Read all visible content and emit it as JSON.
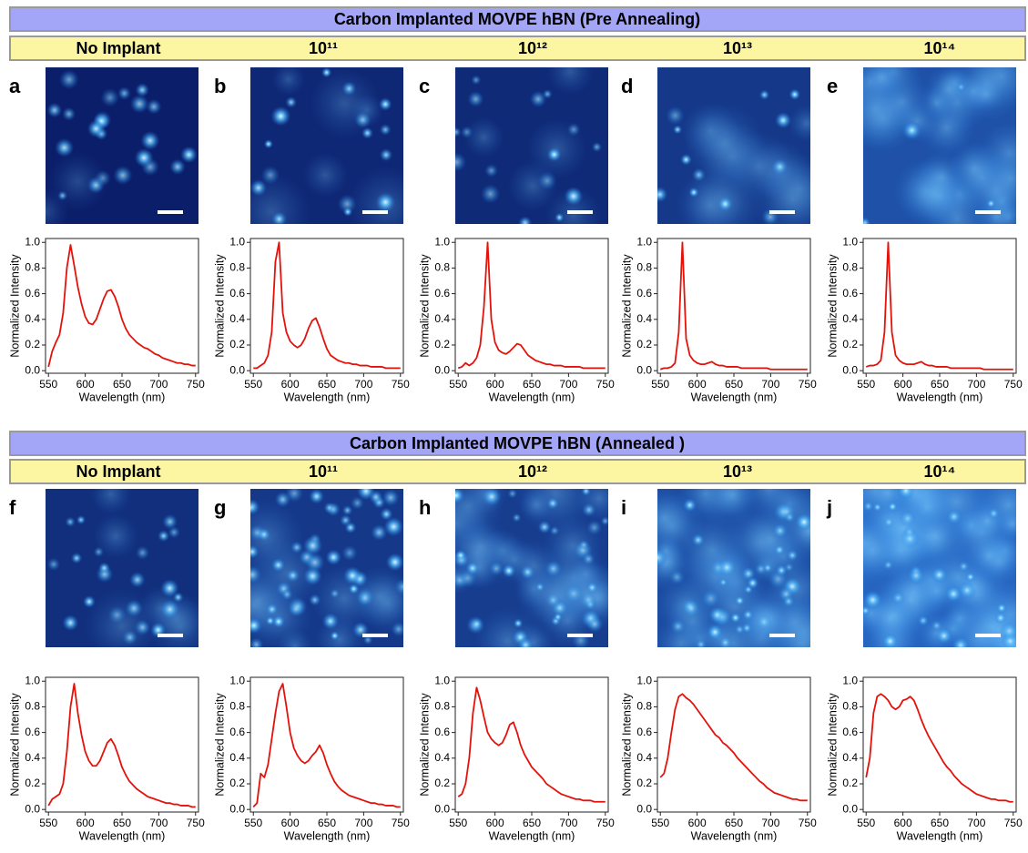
{
  "sections": [
    {
      "title": "Carbon Implanted MOVPE hBN (Pre Annealing)",
      "columns": [
        "No Implant",
        "10¹¹",
        "10¹²",
        "10¹³",
        "10¹⁴"
      ],
      "panels": [
        "a",
        "b",
        "c",
        "d",
        "e"
      ]
    },
    {
      "title": "Carbon Implanted MOVPE hBN (Annealed )",
      "columns": [
        "No Implant",
        "10¹¹",
        "10¹²",
        "10¹³",
        "10¹⁴"
      ],
      "panels": [
        "f",
        "g",
        "h",
        "i",
        "j"
      ]
    }
  ],
  "chart_data": [
    {
      "type": "line",
      "xlabel": "Wavelength (nm)",
      "ylabel": "Normalized Intensity",
      "color": "#e3120b",
      "xlim": [
        546,
        754
      ],
      "xticks": [
        550,
        600,
        650,
        700,
        750
      ],
      "ylim": [
        -0.02,
        1.03
      ],
      "yticks": [
        {
          "value": 0,
          "label": "0.0"
        },
        0.2,
        0.4,
        0.6,
        0.8,
        {
          "value": 1,
          "label": "1.0"
        }
      ],
      "x": [
        550,
        555,
        560,
        565,
        570,
        575,
        580,
        585,
        590,
        595,
        600,
        605,
        610,
        615,
        620,
        625,
        630,
        635,
        640,
        645,
        650,
        655,
        660,
        665,
        670,
        675,
        680,
        685,
        690,
        695,
        700,
        705,
        710,
        715,
        720,
        725,
        730,
        735,
        740,
        745,
        750
      ],
      "values": [
        0.03,
        0.15,
        0.22,
        0.28,
        0.45,
        0.8,
        0.98,
        0.82,
        0.65,
        0.52,
        0.42,
        0.37,
        0.36,
        0.4,
        0.48,
        0.56,
        0.62,
        0.63,
        0.58,
        0.5,
        0.4,
        0.33,
        0.28,
        0.25,
        0.22,
        0.2,
        0.18,
        0.17,
        0.15,
        0.13,
        0.12,
        0.1,
        0.09,
        0.08,
        0.07,
        0.06,
        0.06,
        0.05,
        0.05,
        0.04,
        0.04
      ]
    },
    {
      "type": "line",
      "xlabel": "Wavelength (nm)",
      "ylabel": "Normalized Intensity",
      "color": "#e3120b",
      "xlim": [
        546,
        754
      ],
      "xticks": [
        550,
        600,
        650,
        700,
        750
      ],
      "ylim": [
        -0.02,
        1.03
      ],
      "yticks": [
        {
          "value": 0,
          "label": "0.0"
        },
        0.2,
        0.4,
        0.6,
        0.8,
        {
          "value": 1,
          "label": "1.0"
        }
      ],
      "x": [
        550,
        555,
        560,
        565,
        570,
        575,
        580,
        585,
        590,
        595,
        600,
        605,
        610,
        615,
        620,
        625,
        630,
        635,
        640,
        645,
        650,
        655,
        660,
        665,
        670,
        675,
        680,
        685,
        690,
        695,
        700,
        705,
        710,
        715,
        720,
        725,
        730,
        735,
        740,
        745,
        750
      ],
      "values": [
        0.02,
        0.02,
        0.04,
        0.06,
        0.12,
        0.3,
        0.85,
        1.0,
        0.45,
        0.3,
        0.23,
        0.2,
        0.18,
        0.2,
        0.25,
        0.33,
        0.39,
        0.41,
        0.34,
        0.25,
        0.17,
        0.12,
        0.1,
        0.08,
        0.07,
        0.06,
        0.06,
        0.05,
        0.05,
        0.04,
        0.04,
        0.04,
        0.03,
        0.03,
        0.03,
        0.03,
        0.02,
        0.02,
        0.02,
        0.02,
        0.02
      ]
    },
    {
      "type": "line",
      "xlabel": "Wavelength (nm)",
      "ylabel": "Normalized Intensity",
      "color": "#e3120b",
      "xlim": [
        546,
        754
      ],
      "xticks": [
        550,
        600,
        650,
        700,
        750
      ],
      "ylim": [
        -0.02,
        1.03
      ],
      "yticks": [
        {
          "value": 0,
          "label": "0.0"
        },
        0.2,
        0.4,
        0.6,
        0.8,
        {
          "value": 1,
          "label": "1.0"
        }
      ],
      "x": [
        550,
        555,
        560,
        565,
        570,
        575,
        580,
        585,
        590,
        595,
        600,
        605,
        610,
        615,
        620,
        625,
        630,
        635,
        640,
        645,
        650,
        655,
        660,
        665,
        670,
        675,
        680,
        685,
        690,
        695,
        700,
        705,
        710,
        715,
        720,
        725,
        730,
        735,
        740,
        745,
        750
      ],
      "values": [
        0.02,
        0.03,
        0.06,
        0.04,
        0.06,
        0.1,
        0.2,
        0.5,
        1.0,
        0.4,
        0.22,
        0.16,
        0.14,
        0.13,
        0.15,
        0.18,
        0.21,
        0.2,
        0.16,
        0.12,
        0.1,
        0.08,
        0.07,
        0.06,
        0.05,
        0.05,
        0.04,
        0.04,
        0.04,
        0.03,
        0.03,
        0.03,
        0.03,
        0.03,
        0.02,
        0.02,
        0.02,
        0.02,
        0.02,
        0.02,
        0.02
      ]
    },
    {
      "type": "line",
      "xlabel": "Wavelength (nm)",
      "ylabel": "Normalized Intensity",
      "color": "#e3120b",
      "xlim": [
        546,
        754
      ],
      "xticks": [
        550,
        600,
        650,
        700,
        750
      ],
      "ylim": [
        -0.02,
        1.03
      ],
      "yticks": [
        {
          "value": 0,
          "label": "0.0"
        },
        0.2,
        0.4,
        0.6,
        0.8,
        {
          "value": 1,
          "label": "1.0"
        }
      ],
      "x": [
        550,
        555,
        560,
        565,
        570,
        575,
        580,
        585,
        590,
        595,
        600,
        605,
        610,
        615,
        620,
        625,
        630,
        635,
        640,
        645,
        650,
        655,
        660,
        665,
        670,
        675,
        680,
        685,
        690,
        695,
        700,
        705,
        710,
        715,
        720,
        725,
        730,
        735,
        740,
        745,
        750
      ],
      "values": [
        0.01,
        0.02,
        0.02,
        0.03,
        0.06,
        0.3,
        1.0,
        0.25,
        0.12,
        0.08,
        0.06,
        0.05,
        0.05,
        0.06,
        0.07,
        0.05,
        0.04,
        0.04,
        0.03,
        0.03,
        0.03,
        0.03,
        0.02,
        0.02,
        0.02,
        0.02,
        0.02,
        0.02,
        0.02,
        0.02,
        0.01,
        0.01,
        0.01,
        0.01,
        0.01,
        0.01,
        0.01,
        0.01,
        0.01,
        0.01,
        0.01
      ]
    },
    {
      "type": "line",
      "xlabel": "Wavelength (nm)",
      "ylabel": "Normalized Intensity",
      "color": "#e3120b",
      "xlim": [
        546,
        754
      ],
      "xticks": [
        550,
        600,
        650,
        700,
        750
      ],
      "ylim": [
        -0.02,
        1.03
      ],
      "yticks": [
        {
          "value": 0,
          "label": "0.0"
        },
        0.2,
        0.4,
        0.6,
        0.8,
        {
          "value": 1,
          "label": "1.0"
        }
      ],
      "x": [
        550,
        555,
        560,
        565,
        570,
        575,
        580,
        585,
        590,
        595,
        600,
        605,
        610,
        615,
        620,
        625,
        630,
        635,
        640,
        645,
        650,
        655,
        660,
        665,
        670,
        675,
        680,
        685,
        690,
        695,
        700,
        705,
        710,
        715,
        720,
        725,
        730,
        735,
        740,
        745,
        750
      ],
      "values": [
        0.03,
        0.04,
        0.04,
        0.05,
        0.08,
        0.3,
        1.0,
        0.3,
        0.12,
        0.08,
        0.06,
        0.05,
        0.05,
        0.05,
        0.06,
        0.07,
        0.05,
        0.04,
        0.04,
        0.03,
        0.03,
        0.03,
        0.03,
        0.02,
        0.02,
        0.02,
        0.02,
        0.02,
        0.02,
        0.02,
        0.02,
        0.02,
        0.01,
        0.01,
        0.01,
        0.01,
        0.01,
        0.01,
        0.01,
        0.01,
        0.01
      ]
    },
    {
      "type": "line",
      "xlabel": "Wavelength (nm)",
      "ylabel": "Normalized Intensity",
      "color": "#e3120b",
      "xlim": [
        546,
        754
      ],
      "xticks": [
        550,
        600,
        650,
        700,
        750
      ],
      "ylim": [
        -0.02,
        1.03
      ],
      "yticks": [
        {
          "value": 0,
          "label": "0.0"
        },
        0.2,
        0.4,
        0.6,
        0.8,
        {
          "value": 1,
          "label": "1.0"
        }
      ],
      "x": [
        550,
        555,
        560,
        565,
        570,
        575,
        580,
        585,
        590,
        595,
        600,
        605,
        610,
        615,
        620,
        625,
        630,
        635,
        640,
        645,
        650,
        655,
        660,
        665,
        670,
        675,
        680,
        685,
        690,
        695,
        700,
        705,
        710,
        715,
        720,
        725,
        730,
        735,
        740,
        745,
        750
      ],
      "values": [
        0.03,
        0.08,
        0.1,
        0.12,
        0.2,
        0.45,
        0.8,
        0.98,
        0.75,
        0.58,
        0.45,
        0.38,
        0.34,
        0.34,
        0.38,
        0.45,
        0.52,
        0.55,
        0.5,
        0.42,
        0.33,
        0.27,
        0.22,
        0.19,
        0.16,
        0.14,
        0.12,
        0.1,
        0.09,
        0.08,
        0.07,
        0.06,
        0.05,
        0.05,
        0.04,
        0.04,
        0.03,
        0.03,
        0.03,
        0.02,
        0.02
      ]
    },
    {
      "type": "line",
      "xlabel": "Wavelength (nm)",
      "ylabel": "Normalized Intensity",
      "color": "#e3120b",
      "xlim": [
        546,
        754
      ],
      "xticks": [
        550,
        600,
        650,
        700,
        750
      ],
      "ylim": [
        -0.02,
        1.03
      ],
      "yticks": [
        {
          "value": 0,
          "label": "0.0"
        },
        0.2,
        0.4,
        0.6,
        0.8,
        {
          "value": 1,
          "label": "1.0"
        }
      ],
      "x": [
        550,
        555,
        560,
        565,
        570,
        575,
        580,
        585,
        590,
        595,
        600,
        605,
        610,
        615,
        620,
        625,
        630,
        635,
        640,
        645,
        650,
        655,
        660,
        665,
        670,
        675,
        680,
        685,
        690,
        695,
        700,
        705,
        710,
        715,
        720,
        725,
        730,
        735,
        740,
        745,
        750
      ],
      "values": [
        0.02,
        0.05,
        0.28,
        0.25,
        0.35,
        0.55,
        0.75,
        0.92,
        0.98,
        0.8,
        0.6,
        0.48,
        0.42,
        0.38,
        0.36,
        0.38,
        0.42,
        0.45,
        0.5,
        0.44,
        0.35,
        0.28,
        0.22,
        0.18,
        0.15,
        0.13,
        0.11,
        0.1,
        0.09,
        0.08,
        0.07,
        0.06,
        0.05,
        0.05,
        0.04,
        0.04,
        0.03,
        0.03,
        0.03,
        0.02,
        0.02
      ]
    },
    {
      "type": "line",
      "xlabel": "Wavelength (nm)",
      "ylabel": "Normalized Intensity",
      "color": "#e3120b",
      "xlim": [
        546,
        754
      ],
      "xticks": [
        550,
        600,
        650,
        700,
        750
      ],
      "ylim": [
        -0.02,
        1.03
      ],
      "yticks": [
        {
          "value": 0,
          "label": "0.0"
        },
        0.2,
        0.4,
        0.6,
        0.8,
        {
          "value": 1,
          "label": "1.0"
        }
      ],
      "x": [
        550,
        555,
        560,
        565,
        570,
        575,
        580,
        585,
        590,
        595,
        600,
        605,
        610,
        615,
        620,
        625,
        630,
        635,
        640,
        645,
        650,
        655,
        660,
        665,
        670,
        675,
        680,
        685,
        690,
        695,
        700,
        705,
        710,
        715,
        720,
        725,
        730,
        735,
        740,
        745,
        750
      ],
      "values": [
        0.1,
        0.12,
        0.2,
        0.4,
        0.75,
        0.95,
        0.85,
        0.72,
        0.6,
        0.55,
        0.52,
        0.5,
        0.52,
        0.58,
        0.66,
        0.68,
        0.6,
        0.5,
        0.43,
        0.38,
        0.33,
        0.3,
        0.27,
        0.24,
        0.2,
        0.18,
        0.16,
        0.14,
        0.12,
        0.11,
        0.1,
        0.09,
        0.08,
        0.08,
        0.07,
        0.07,
        0.07,
        0.06,
        0.06,
        0.06,
        0.06
      ]
    },
    {
      "type": "line",
      "xlabel": "Wavelength (nm)",
      "ylabel": "Normalized Intensity",
      "color": "#e3120b",
      "xlim": [
        546,
        754
      ],
      "xticks": [
        550,
        600,
        650,
        700,
        750
      ],
      "ylim": [
        -0.02,
        1.03
      ],
      "yticks": [
        {
          "value": 0,
          "label": "0.0"
        },
        0.2,
        0.4,
        0.6,
        0.8,
        {
          "value": 1,
          "label": "1.0"
        }
      ],
      "x": [
        550,
        555,
        560,
        565,
        570,
        575,
        580,
        585,
        590,
        595,
        600,
        605,
        610,
        615,
        620,
        625,
        630,
        635,
        640,
        645,
        650,
        655,
        660,
        665,
        670,
        675,
        680,
        685,
        690,
        695,
        700,
        705,
        710,
        715,
        720,
        725,
        730,
        735,
        740,
        745,
        750
      ],
      "values": [
        0.25,
        0.28,
        0.4,
        0.6,
        0.78,
        0.88,
        0.9,
        0.87,
        0.85,
        0.82,
        0.78,
        0.74,
        0.7,
        0.66,
        0.62,
        0.58,
        0.56,
        0.52,
        0.5,
        0.47,
        0.44,
        0.4,
        0.37,
        0.34,
        0.31,
        0.28,
        0.25,
        0.22,
        0.2,
        0.17,
        0.15,
        0.13,
        0.12,
        0.11,
        0.1,
        0.09,
        0.08,
        0.08,
        0.07,
        0.07,
        0.07
      ]
    },
    {
      "type": "line",
      "xlabel": "Wavelength (nm)",
      "ylabel": "Normalized Intensity",
      "color": "#e3120b",
      "xlim": [
        546,
        754
      ],
      "xticks": [
        550,
        600,
        650,
        700,
        750
      ],
      "ylim": [
        -0.02,
        1.03
      ],
      "yticks": [
        {
          "value": 0,
          "label": "0.0"
        },
        0.2,
        0.4,
        0.6,
        0.8,
        {
          "value": 1,
          "label": "1.0"
        }
      ],
      "x": [
        550,
        555,
        560,
        565,
        570,
        575,
        580,
        585,
        590,
        595,
        600,
        605,
        610,
        615,
        620,
        625,
        630,
        635,
        640,
        645,
        650,
        655,
        660,
        665,
        670,
        675,
        680,
        685,
        690,
        695,
        700,
        705,
        710,
        715,
        720,
        725,
        730,
        735,
        740,
        745,
        750
      ],
      "values": [
        0.25,
        0.4,
        0.75,
        0.88,
        0.9,
        0.88,
        0.85,
        0.8,
        0.78,
        0.8,
        0.85,
        0.86,
        0.88,
        0.85,
        0.78,
        0.7,
        0.63,
        0.57,
        0.52,
        0.47,
        0.42,
        0.37,
        0.33,
        0.3,
        0.26,
        0.23,
        0.2,
        0.18,
        0.16,
        0.14,
        0.12,
        0.11,
        0.1,
        0.09,
        0.08,
        0.08,
        0.07,
        0.07,
        0.07,
        0.06,
        0.06
      ]
    }
  ]
}
